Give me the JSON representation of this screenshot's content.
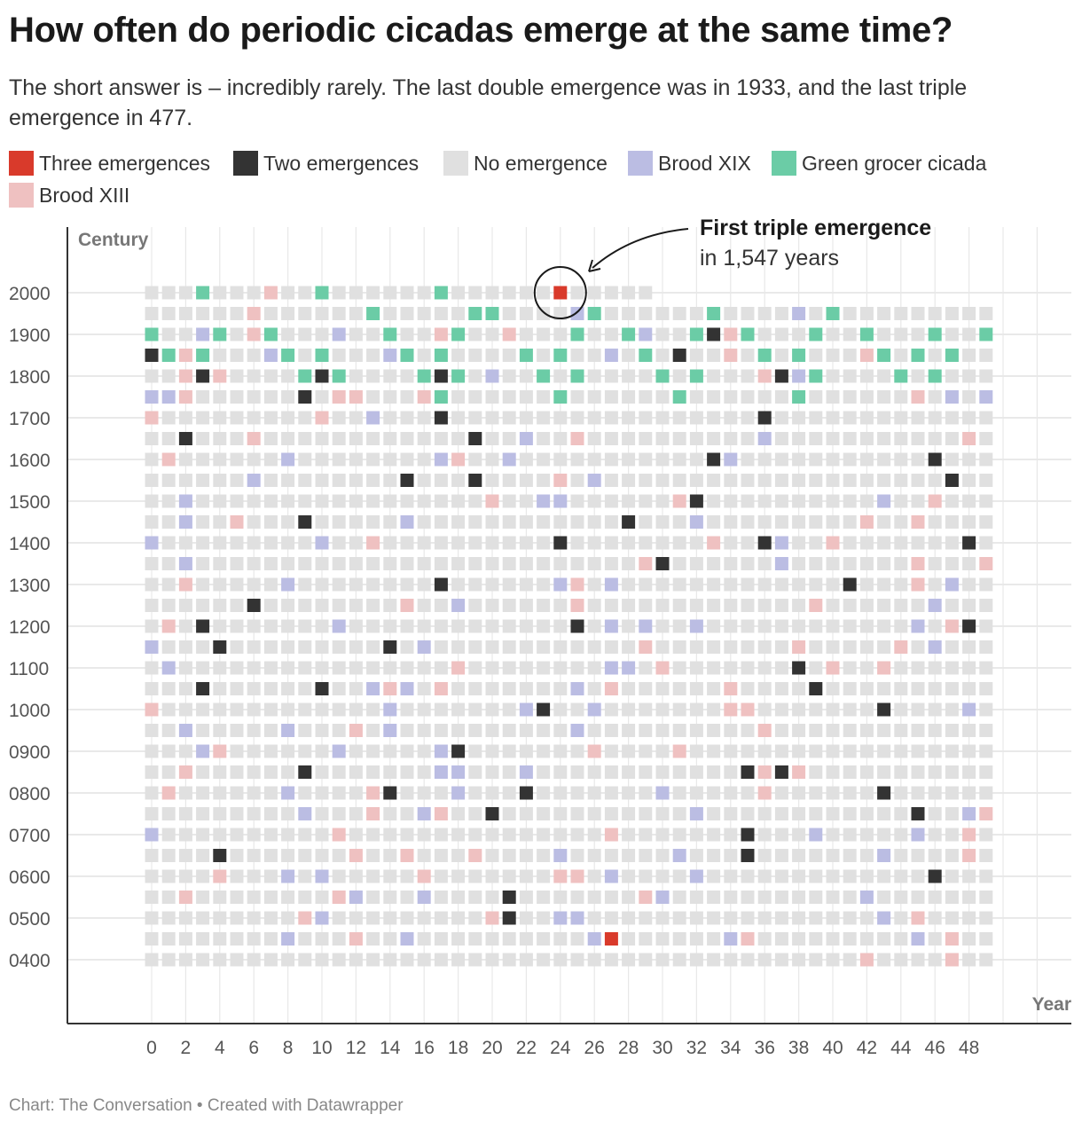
{
  "title": "How often do periodic cicadas emerge at the same time?",
  "subtitle": "The short answer is – incredibly rarely. The last double emergence was in 1933, and the last triple emergence in 477.",
  "footer": "Chart: The Conversation • Created with Datawrapper",
  "legend": [
    {
      "key": "three",
      "label": "Three emergences",
      "color": "#d93a2b"
    },
    {
      "key": "two",
      "label": "Two emergences",
      "color": "#333333"
    },
    {
      "key": "none",
      "label": "No emergence",
      "color": "#e0e0e0"
    },
    {
      "key": "xix",
      "label": "Brood XIX",
      "color": "#bbbde3"
    },
    {
      "key": "green",
      "label": "Green grocer cicada",
      "color": "#6bcca6"
    },
    {
      "key": "xiii",
      "label": "Brood XIII",
      "color": "#efc1c1"
    }
  ],
  "chart_data": {
    "type": "heatmap",
    "xlabel": "Year",
    "ylabel": "Century",
    "x_ticks": [
      "0",
      "2",
      "4",
      "6",
      "8",
      "10",
      "12",
      "14",
      "16",
      "18",
      "20",
      "22",
      "24",
      "26",
      "28",
      "30",
      "32",
      "34",
      "36",
      "38",
      "40",
      "42",
      "44",
      "46",
      "48"
    ],
    "y_ticks": [
      "2000",
      "1900",
      "1800",
      "1700",
      "1600",
      "1500",
      "1400",
      "1300",
      "1200",
      "1100",
      "1000",
      "0900",
      "0800",
      "0700",
      "0600",
      "0500",
      "0400"
    ],
    "x_range": [
      0,
      49
    ],
    "years_range": [
      400,
      2030
    ],
    "annotation": {
      "bold": "First triple emergence",
      "text": "in 1,547 years",
      "year": 2024
    },
    "triple_emergence_years": [
      477,
      2024
    ],
    "double_emergence_years": [
      1933,
      1850,
      1803,
      1837,
      1810,
      1817,
      1881,
      1759,
      1736,
      1717,
      1669,
      1652,
      1646,
      1633,
      1597,
      1569,
      1565,
      1532,
      1448,
      1459,
      1478,
      1424,
      1436,
      1380,
      1341,
      1317,
      1256,
      1248,
      1225,
      1203,
      1164,
      1154,
      1138,
      1089,
      1060,
      1053,
      1043,
      1023,
      918,
      887,
      885,
      859,
      843,
      822,
      814,
      795,
      770,
      735,
      685,
      654,
      646,
      571,
      521
    ],
    "brood_xix_years": [
      1988,
      1975,
      1929,
      1903,
      1911,
      1877,
      1864,
      1857,
      1838,
      1799,
      1820,
      1797,
      1750,
      1751,
      1759,
      1713,
      1672,
      1686,
      1617,
      1608,
      1621,
      1634,
      1608,
      1556,
      1576,
      1543,
      1523,
      1524,
      1465,
      1482,
      1502,
      1452,
      1437,
      1424,
      1400,
      1410,
      1387,
      1352,
      1347,
      1327,
      1324,
      1308,
      1296,
      1268,
      1245,
      1232,
      1227,
      1229,
      1211,
      1196,
      1166,
      1150,
      1127,
      1128,
      1101,
      1065,
      1075,
      1063,
      1048,
      1022,
      1022,
      1026,
      1014,
      975,
      964,
      952,
      958,
      911,
      903,
      917,
      872,
      867,
      868,
      859,
      830,
      818,
      808,
      798,
      782,
      766,
      759,
      745,
      739,
      700,
      693,
      681,
      674,
      632,
      627,
      608,
      610,
      592,
      580,
      562,
      566,
      543,
      525,
      524,
      510,
      495,
      484,
      476,
      465,
      458
    ],
    "brood_xiii_years": [
      2007,
      1956,
      1934,
      1921,
      1906,
      1917,
      1884,
      1892,
      1852,
      1850,
      1836,
      1802,
      1804,
      1795,
      1766,
      1762,
      1761,
      1752,
      1710,
      1698,
      1700,
      1675,
      1656,
      1633,
      1618,
      1608,
      1601,
      1574,
      1546,
      1531,
      1520,
      1492,
      1495,
      1478,
      1455,
      1440,
      1433,
      1413,
      1399,
      1395,
      1379,
      1345,
      1341,
      1325,
      1302,
      1289,
      1275,
      1265,
      1247,
      1227,
      1201,
      1194,
      1188,
      1179,
      1143,
      1140,
      1130,
      1118,
      1084,
      1077,
      1067,
      1064,
      1035,
      1034,
      1023,
      1000,
      986,
      975,
      962,
      931,
      926,
      904,
      888,
      886,
      852,
      836,
      813,
      801,
      799,
      767,
      763,
      748,
      727,
      711,
      698,
      669,
      665,
      662,
      625,
      624,
      616,
      604,
      579,
      561,
      552,
      545,
      520,
      510,
      509,
      497,
      485,
      462,
      447,
      442
    ],
    "green_grocer_years": [
      2003,
      2010,
      2017,
      1969,
      1976,
      1983,
      1990,
      1904,
      1911,
      1918,
      1925,
      1932,
      1939,
      1946,
      1867,
      1874,
      1881,
      1888,
      1895,
      1897,
      1804,
      1811,
      1818,
      1825,
      1832,
      1839,
      1846,
      1853,
      1860,
      1767,
      1774,
      1781,
      1788,
      1795,
      1802,
      1809,
      1816,
      1823,
      1830,
      1837,
      1844,
      1851,
      1858,
      1865,
      1872,
      1879,
      1886,
      1893,
      1900,
      1907,
      1914,
      1921,
      1928,
      1935,
      1942,
      1949,
      1956,
      1963,
      1970
    ],
    "green_grocer_note": "Green grocer (teal) cells follow diagonal bands across the grid"
  },
  "y_axis_title": "Century",
  "x_axis_title": "Year"
}
